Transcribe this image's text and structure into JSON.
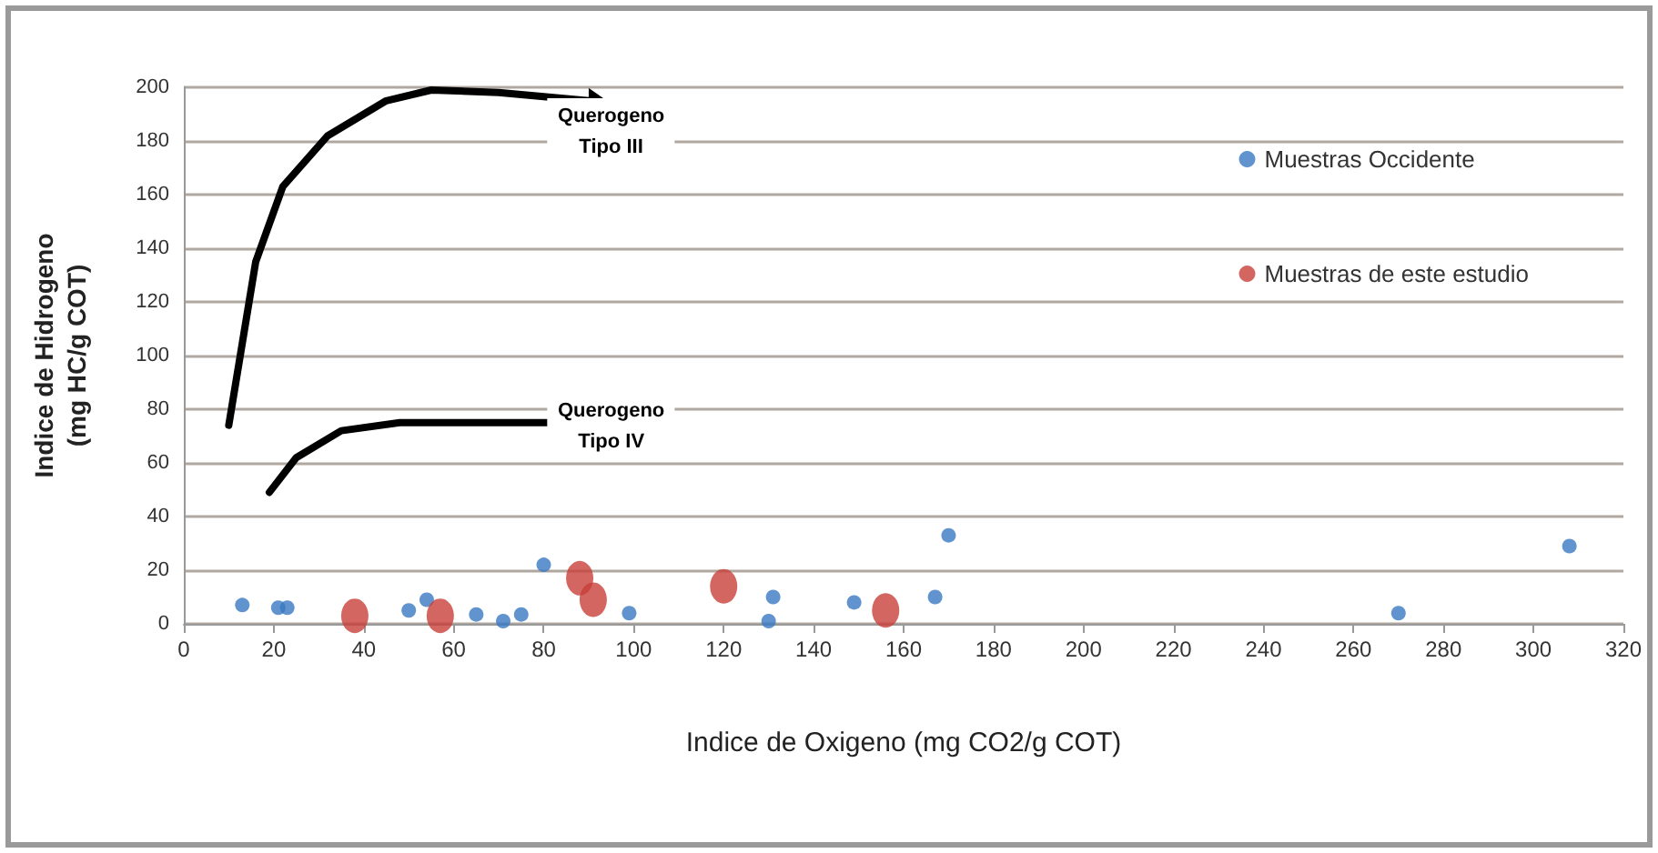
{
  "chart_data": {
    "type": "scatter",
    "xlabel": "Indice de Oxigeno (mg CO2/g COT)",
    "ylabel": "Indice de Hidrogeno\n(mg HC/g COT)",
    "annotations": [
      "Querogeno\nTipo III",
      "Querogeno\nTipo IV"
    ],
    "series": [
      {
        "name": "Muestras Occidente",
        "color": "#3a78c2",
        "x": [
          13,
          21,
          23,
          50,
          54,
          65,
          71,
          75,
          80,
          99,
          130,
          131,
          149,
          167,
          170,
          270,
          308
        ],
        "values": [
          7,
          6,
          6,
          5,
          9,
          3.5,
          1,
          3.5,
          22,
          4,
          1,
          10,
          8,
          10,
          33,
          4,
          29
        ]
      },
      {
        "name": "Muestras de este estudio",
        "color": "#c8403a",
        "x": [
          38,
          57,
          88,
          91,
          120,
          156
        ],
        "values": [
          3,
          3,
          17,
          9,
          14,
          5
        ]
      }
    ],
    "xlim": [
      0,
      320
    ],
    "xticks": [
      0,
      20,
      40,
      60,
      80,
      100,
      120,
      140,
      160,
      180,
      200,
      220,
      240,
      260,
      280,
      300,
      320
    ],
    "ylim": [
      0,
      200
    ],
    "yticks": [
      0,
      20,
      40,
      60,
      80,
      100,
      120,
      140,
      160,
      180,
      200
    ],
    "grid": "y",
    "legend": "top right",
    "marker": "circle"
  }
}
